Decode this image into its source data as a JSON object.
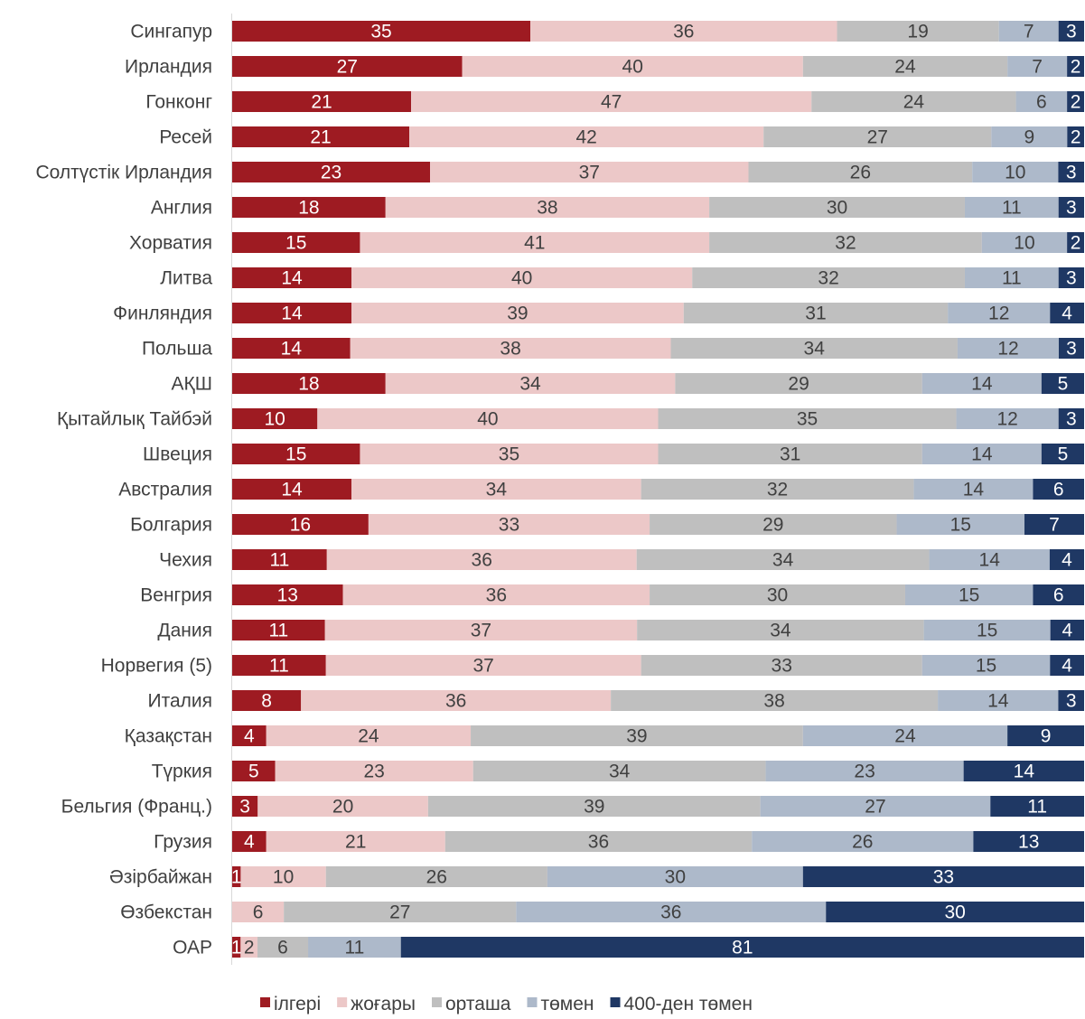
{
  "chart_data": {
    "type": "bar",
    "orientation": "horizontal",
    "stacked": true,
    "xlim": [
      0,
      100
    ],
    "grid": false,
    "legend_position": "bottom",
    "categories": [
      "Сингапур",
      "Ирландия",
      "Гонконг",
      "Ресей",
      "Солтүстік Ирландия",
      "Англия",
      "Хорватия",
      "Литва",
      "Финляндия",
      "Польша",
      "АҚШ",
      "Қытайлық Тайбэй",
      "Швеция",
      "Австралия",
      "Болгария",
      "Чехия",
      "Венгрия",
      "Дания",
      "Норвегия (5)",
      "Италия",
      "Қазақстан",
      "Түркия",
      "Бельгия (Франц.)",
      "Грузия",
      "Әзірбайжан",
      "Өзбекстан",
      "ОАР"
    ],
    "series": [
      {
        "name": "ілгері",
        "color": "#9e1b22",
        "label_color": "#ffffff",
        "values": [
          35,
          27,
          21,
          21,
          23,
          18,
          15,
          14,
          14,
          14,
          18,
          10,
          15,
          14,
          16,
          11,
          13,
          11,
          11,
          8,
          4,
          5,
          3,
          4,
          1,
          0,
          1
        ]
      },
      {
        "name": "жоғары",
        "color": "#ecc8c8",
        "label_color": "#404040",
        "values": [
          36,
          40,
          47,
          42,
          37,
          38,
          41,
          40,
          39,
          38,
          34,
          40,
          35,
          34,
          33,
          36,
          36,
          37,
          37,
          36,
          24,
          23,
          20,
          21,
          10,
          6,
          2
        ]
      },
      {
        "name": "орташа",
        "color": "#bfbfbf",
        "label_color": "#404040",
        "values": [
          19,
          24,
          24,
          27,
          26,
          30,
          32,
          32,
          31,
          34,
          29,
          35,
          31,
          32,
          29,
          34,
          30,
          34,
          33,
          38,
          39,
          34,
          39,
          36,
          26,
          27,
          6
        ]
      },
      {
        "name": "төмен",
        "color": "#adb9ca",
        "label_color": "#404040",
        "values": [
          7,
          7,
          6,
          9,
          10,
          11,
          10,
          11,
          12,
          12,
          14,
          12,
          14,
          14,
          15,
          14,
          15,
          15,
          15,
          14,
          24,
          23,
          27,
          26,
          30,
          36,
          11
        ]
      },
      {
        "name": "400-ден төмен",
        "color": "#1f3864",
        "label_color": "#ffffff",
        "values": [
          3,
          2,
          2,
          2,
          3,
          3,
          2,
          3,
          4,
          3,
          5,
          3,
          5,
          6,
          7,
          4,
          6,
          4,
          4,
          3,
          9,
          14,
          11,
          13,
          33,
          30,
          81
        ]
      }
    ]
  }
}
